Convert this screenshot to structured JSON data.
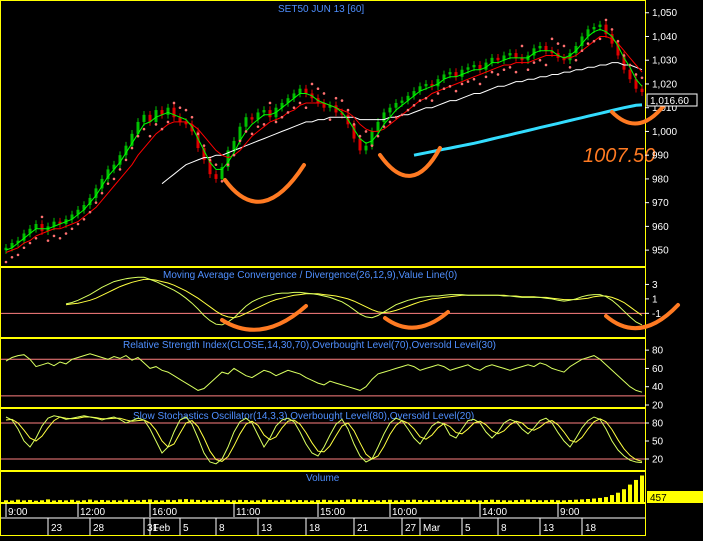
{
  "header": {
    "title": "SET50 JUN 13   [60]"
  },
  "annotation": {
    "price_note": "1007.50"
  },
  "colors": {
    "background": "#000000",
    "panel_border": "#ffff00",
    "ref_line": "#ff8080",
    "price_up": "#00c000",
    "price_down": "#e00000",
    "ma_fast": "#00ff00",
    "ma_mid": "#ff0000",
    "ma_slow": "#ffffff",
    "ma_long": "#33ddff",
    "sar": "#ff7070",
    "indicator": "#d8ff60",
    "signal": "#ffff40",
    "volume": "#ffff00",
    "annot": "#ff7a22",
    "label": "#4f8fff"
  },
  "chart_data": [
    {
      "type": "line",
      "name": "price",
      "title": "SET50 JUN 13   [60]",
      "ylim": [
        945,
        1052
      ],
      "yticks": [
        "1,050",
        "1,040",
        "1,030",
        "1,020",
        "1,010",
        "1,000",
        "990",
        "980",
        "970",
        "960",
        "950"
      ],
      "last_value_label": "1,016.60",
      "last_value": 1016.6,
      "annotation": "1007.50",
      "x": [
        0,
        6,
        12,
        18,
        24,
        30,
        36,
        42,
        48,
        54,
        60,
        66,
        72,
        78,
        84,
        90,
        96,
        102,
        108,
        114,
        120,
        126,
        132,
        138,
        144,
        150,
        156,
        162,
        168,
        174,
        180,
        186,
        192,
        198,
        204,
        210,
        216,
        222,
        228,
        234,
        240,
        246,
        252,
        258,
        264,
        270,
        276,
        282,
        288,
        294,
        300,
        306,
        312,
        318,
        324,
        330,
        336,
        342,
        348,
        354,
        360,
        366,
        372,
        378,
        384,
        390,
        396,
        402,
        408,
        414,
        420,
        426,
        432,
        438,
        444,
        450,
        456,
        462,
        468,
        474,
        480,
        486,
        492,
        498,
        504,
        510,
        516,
        522,
        528,
        534,
        540,
        546,
        552,
        558,
        564,
        570,
        576,
        582,
        588,
        594,
        600,
        606,
        612,
        618,
        624,
        630,
        636
      ],
      "close": [
        951,
        953,
        954,
        957,
        959,
        961,
        958,
        960,
        962,
        961,
        963,
        965,
        967,
        969,
        972,
        976,
        980,
        984,
        986,
        990,
        994,
        999,
        1004,
        1007,
        1004,
        1009,
        1007,
        1010,
        1006,
        1004,
        1003,
        1000,
        993,
        988,
        982,
        980,
        985,
        992,
        996,
        1002,
        1006,
        1005,
        1008,
        1009,
        1006,
        1010,
        1012,
        1014,
        1016,
        1018,
        1016,
        1014,
        1012,
        1010,
        1011,
        1008,
        1007,
        1003,
        997,
        992,
        994,
        1000,
        1004,
        1008,
        1010,
        1012,
        1013,
        1015,
        1017,
        1019,
        1020,
        1019,
        1022,
        1024,
        1025,
        1023,
        1026,
        1027,
        1028,
        1026,
        1029,
        1031,
        1030,
        1032,
        1033,
        1031,
        1030,
        1032,
        1035,
        1036,
        1034,
        1033,
        1031,
        1030,
        1033,
        1036,
        1040,
        1043,
        1044,
        1045,
        1041,
        1037,
        1032,
        1026,
        1022,
        1018,
        1016.6
      ],
      "ma_fast": [
        950,
        951,
        953,
        955,
        957,
        959,
        959,
        959,
        960,
        961,
        962,
        963,
        965,
        967,
        970,
        973,
        977,
        981,
        984,
        987,
        991,
        995,
        999,
        1003,
        1004,
        1006,
        1007,
        1008,
        1007,
        1006,
        1005,
        1002,
        997,
        992,
        987,
        984,
        984,
        987,
        991,
        996,
        1000,
        1003,
        1005,
        1007,
        1007,
        1008,
        1010,
        1012,
        1014,
        1016,
        1016,
        1015,
        1013,
        1012,
        1011,
        1010,
        1008,
        1005,
        1001,
        997,
        995,
        996,
        999,
        1003,
        1006,
        1009,
        1011,
        1013,
        1015,
        1017,
        1018,
        1019,
        1020,
        1022,
        1023,
        1023,
        1024,
        1025,
        1026,
        1026,
        1027,
        1029,
        1029,
        1030,
        1031,
        1031,
        1031,
        1031,
        1033,
        1034,
        1034,
        1034,
        1032,
        1031,
        1032,
        1034,
        1037,
        1040,
        1042,
        1043,
        1042,
        1040,
        1036,
        1031,
        1027,
        1022,
        1019
      ],
      "ma_mid": [
        949,
        950,
        951,
        953,
        954,
        956,
        957,
        958,
        959,
        959,
        960,
        961,
        962,
        964,
        966,
        968,
        971,
        974,
        977,
        980,
        983,
        986,
        990,
        993,
        996,
        999,
        1001,
        1003,
        1004,
        1004,
        1004,
        1003,
        1001,
        998,
        995,
        992,
        990,
        989,
        990,
        992,
        995,
        998,
        1000,
        1002,
        1004,
        1005,
        1006,
        1008,
        1009,
        1011,
        1012,
        1012,
        1012,
        1012,
        1011,
        1010,
        1009,
        1008,
        1006,
        1003,
        1001,
        1000,
        1000,
        1001,
        1003,
        1005,
        1007,
        1009,
        1011,
        1013,
        1014,
        1016,
        1017,
        1018,
        1019,
        1020,
        1021,
        1022,
        1023,
        1024,
        1025,
        1026,
        1027,
        1028,
        1028,
        1029,
        1029,
        1029,
        1030,
        1031,
        1032,
        1032,
        1032,
        1031,
        1031,
        1032,
        1034,
        1036,
        1038,
        1040,
        1040,
        1039,
        1037,
        1034,
        1031,
        1028,
        1025
      ],
      "ma_slow": [
        null,
        null,
        null,
        null,
        null,
        null,
        null,
        null,
        null,
        null,
        null,
        null,
        null,
        null,
        null,
        null,
        null,
        null,
        null,
        null,
        null,
        null,
        null,
        null,
        null,
        null,
        978,
        980,
        982,
        984,
        986,
        987,
        988,
        989,
        989,
        990,
        990,
        991,
        992,
        993,
        994,
        995,
        996,
        997,
        998,
        999,
        1000,
        1001,
        1002,
        1003,
        1004,
        1004,
        1005,
        1005,
        1006,
        1006,
        1006,
        1006,
        1006,
        1005,
        1005,
        1005,
        1005,
        1005,
        1006,
        1006,
        1007,
        1007,
        1008,
        1009,
        1010,
        1010,
        1011,
        1012,
        1013,
        1013,
        1014,
        1015,
        1016,
        1016,
        1017,
        1018,
        1019,
        1019,
        1020,
        1021,
        1021,
        1022,
        1022,
        1023,
        1023,
        1024,
        1024,
        1025,
        1025,
        1026,
        1026,
        1027,
        1027,
        1028,
        1028,
        1029,
        1029,
        1028,
        1028,
        1027,
        1026
      ],
      "ma_long": [
        null,
        null,
        null,
        null,
        null,
        null,
        null,
        null,
        null,
        null,
        null,
        null,
        null,
        null,
        null,
        null,
        null,
        null,
        null,
        null,
        null,
        null,
        null,
        null,
        null,
        null,
        null,
        null,
        null,
        null,
        null,
        null,
        null,
        null,
        null,
        null,
        null,
        null,
        null,
        null,
        null,
        null,
        null,
        null,
        null,
        null,
        null,
        null,
        null,
        null,
        null,
        null,
        null,
        null,
        null,
        null,
        null,
        null,
        null,
        null,
        null,
        null,
        null,
        null,
        null,
        null,
        null,
        null,
        990,
        990.5,
        991,
        991.5,
        992,
        992.5,
        993,
        993.5,
        994,
        994.5,
        995,
        995.6,
        996.2,
        996.8,
        997.4,
        998,
        998.6,
        999.2,
        999.8,
        1000.4,
        1001,
        1001.6,
        1002.2,
        1002.8,
        1003.4,
        1004,
        1004.6,
        1005.2,
        1005.8,
        1006.4,
        1007,
        1007.6,
        1008.2,
        1008.8,
        1009.4,
        1010,
        1010.5,
        1011,
        1011.2
      ]
    },
    {
      "type": "line",
      "name": "macd",
      "title": "Moving Average Convergence / Divergence(26,12,9),Value Line(0)",
      "ylim": [
        -4,
        5
      ],
      "yticks": [
        "3",
        "1",
        "-1"
      ],
      "ref_lines": [
        -1
      ],
      "macd": [
        null,
        null,
        null,
        null,
        null,
        null,
        null,
        null,
        null,
        null,
        0.3,
        0.5,
        0.8,
        1.2,
        1.6,
        2.1,
        2.6,
        3.0,
        3.4,
        3.6,
        3.8,
        3.9,
        4.0,
        4.0,
        3.7,
        3.4,
        3.0,
        2.6,
        2.2,
        1.7,
        1.1,
        0.4,
        -0.4,
        -1.3,
        -2.0,
        -2.5,
        -2.6,
        -2.2,
        -1.6,
        -0.8,
        0.0,
        0.6,
        1.0,
        1.3,
        1.5,
        1.7,
        1.8,
        1.8,
        1.9,
        1.9,
        1.8,
        1.7,
        1.6,
        1.4,
        1.2,
        0.9,
        0.6,
        0.1,
        -0.5,
        -1.1,
        -1.5,
        -1.6,
        -1.3,
        -0.8,
        -0.3,
        0.2,
        0.5,
        0.8,
        1.0,
        1.2,
        1.3,
        1.4,
        1.4,
        1.5,
        1.6,
        1.6,
        1.6,
        1.5,
        1.5,
        1.5,
        1.5,
        1.5,
        1.5,
        1.4,
        1.4,
        1.3,
        1.2,
        1.2,
        1.2,
        1.2,
        1.1,
        1.0,
        0.8,
        0.7,
        0.8,
        1.0,
        1.3,
        1.5,
        1.6,
        1.6,
        1.3,
        0.8,
        0.1,
        -0.7,
        -1.5,
        -2.2,
        -2.6
      ],
      "signal": [
        null,
        null,
        null,
        null,
        null,
        null,
        null,
        null,
        null,
        null,
        0.2,
        0.3,
        0.4,
        0.6,
        0.8,
        1.1,
        1.5,
        1.9,
        2.3,
        2.7,
        3.0,
        3.3,
        3.5,
        3.7,
        3.7,
        3.6,
        3.4,
        3.2,
        2.9,
        2.5,
        2.1,
        1.6,
        1.1,
        0.5,
        -0.1,
        -0.7,
        -1.2,
        -1.5,
        -1.6,
        -1.4,
        -1.0,
        -0.6,
        -0.2,
        0.2,
        0.6,
        0.9,
        1.1,
        1.3,
        1.5,
        1.6,
        1.7,
        1.7,
        1.7,
        1.6,
        1.5,
        1.4,
        1.2,
        1.0,
        0.7,
        0.3,
        -0.1,
        -0.5,
        -0.8,
        -0.9,
        -0.8,
        -0.6,
        -0.3,
        0.0,
        0.3,
        0.6,
        0.8,
        1.0,
        1.1,
        1.2,
        1.3,
        1.4,
        1.5,
        1.5,
        1.5,
        1.5,
        1.5,
        1.5,
        1.5,
        1.5,
        1.4,
        1.4,
        1.3,
        1.3,
        1.3,
        1.2,
        1.2,
        1.1,
        1.0,
        0.9,
        0.9,
        0.9,
        1.0,
        1.1,
        1.3,
        1.4,
        1.4,
        1.2,
        0.9,
        0.5,
        -0.1,
        -0.7,
        -1.3
      ]
    },
    {
      "type": "line",
      "name": "rsi",
      "title": "Relative Strength Index(CLOSE,14,30,70),Overbought Level(70),Oversold Level(30)",
      "ylim": [
        20,
        90
      ],
      "yticks": [
        "80",
        "60",
        "40",
        "20"
      ],
      "ref_lines": [
        70,
        30
      ],
      "values": [
        68,
        72,
        74,
        75,
        70,
        62,
        64,
        66,
        63,
        67,
        65,
        70,
        72,
        74,
        76,
        74,
        72,
        70,
        73,
        71,
        74,
        69,
        72,
        66,
        60,
        62,
        58,
        56,
        52,
        48,
        44,
        40,
        36,
        38,
        44,
        50,
        56,
        54,
        60,
        56,
        52,
        50,
        54,
        58,
        56,
        52,
        55,
        58,
        56,
        54,
        50,
        47,
        44,
        42,
        46,
        44,
        42,
        40,
        38,
        36,
        40,
        48,
        54,
        56,
        58,
        60,
        62,
        64,
        62,
        58,
        60,
        62,
        64,
        62,
        58,
        60,
        62,
        64,
        60,
        58,
        62,
        64,
        62,
        60,
        58,
        60,
        62,
        64,
        62,
        66,
        64,
        60,
        58,
        56,
        62,
        66,
        70,
        72,
        74,
        70,
        64,
        58,
        52,
        46,
        40,
        36,
        34
      ]
    },
    {
      "type": "line",
      "name": "stochastic",
      "title": "Slow Stochastics Oscillator(14,3,3),Overbought Level(80),Oversold Level(20)",
      "ylim": [
        5,
        100
      ],
      "yticks": [
        "80",
        "50",
        "20"
      ],
      "ref_lines": [
        80,
        20
      ],
      "k": [
        90,
        85,
        70,
        50,
        40,
        55,
        75,
        88,
        92,
        90,
        86,
        88,
        90,
        92,
        90,
        88,
        85,
        88,
        90,
        86,
        80,
        84,
        88,
        85,
        70,
        50,
        30,
        40,
        65,
        85,
        90,
        78,
        55,
        30,
        15,
        12,
        20,
        40,
        65,
        82,
        88,
        80,
        60,
        40,
        55,
        75,
        85,
        88,
        82,
        65,
        45,
        30,
        25,
        40,
        60,
        78,
        86,
        70,
        45,
        25,
        15,
        20,
        40,
        62,
        80,
        88,
        84,
        70,
        55,
        45,
        60,
        75,
        82,
        78,
        60,
        55,
        70,
        84,
        86,
        80,
        65,
        55,
        65,
        80,
        86,
        82,
        70,
        62,
        72,
        84,
        88,
        80,
        64,
        50,
        40,
        55,
        72,
        84,
        90,
        86,
        70,
        50,
        35,
        25,
        18,
        15,
        14
      ],
      "d": [
        85,
        86,
        80,
        68,
        55,
        50,
        58,
        72,
        84,
        90,
        88,
        87,
        88,
        90,
        90,
        89,
        87,
        87,
        88,
        88,
        85,
        83,
        84,
        85,
        80,
        68,
        50,
        40,
        45,
        63,
        80,
        84,
        74,
        55,
        33,
        19,
        16,
        24,
        42,
        62,
        78,
        83,
        76,
        60,
        52,
        57,
        72,
        83,
        85,
        78,
        64,
        47,
        33,
        32,
        42,
        59,
        75,
        80,
        67,
        47,
        28,
        20,
        25,
        41,
        61,
        76,
        84,
        80,
        70,
        57,
        53,
        60,
        72,
        79,
        74,
        64,
        62,
        70,
        80,
        83,
        77,
        67,
        62,
        67,
        77,
        83,
        80,
        71,
        68,
        73,
        81,
        84,
        77,
        65,
        51,
        48,
        56,
        70,
        82,
        87,
        82,
        69,
        52,
        37,
        26,
        19,
        16
      ]
    },
    {
      "type": "bar",
      "name": "volume",
      "title": "Volume",
      "last_value_label": "457",
      "values": [
        30,
        25,
        40,
        28,
        35,
        22,
        30,
        45,
        26,
        33,
        28,
        38,
        24,
        30,
        42,
        27,
        35,
        29,
        31,
        26,
        40,
        33,
        28,
        36,
        44,
        30,
        27,
        38,
        32,
        45,
        50,
        42,
        36,
        30,
        28,
        34,
        40,
        31,
        29,
        37,
        33,
        28,
        30,
        41,
        35,
        27,
        32,
        38,
        29,
        34,
        30,
        26,
        33,
        39,
        31,
        28,
        36,
        42,
        48,
        40,
        35,
        30,
        27,
        33,
        38,
        29,
        31,
        36,
        40,
        34,
        28,
        32,
        37,
        30,
        35,
        29,
        33,
        38,
        31,
        27,
        34,
        40,
        36,
        30,
        28,
        33,
        38,
        42,
        35,
        30,
        32,
        37,
        31,
        29,
        35,
        40,
        45,
        52,
        60,
        70,
        85,
        120,
        160,
        220,
        300,
        380,
        457
      ],
      "ylim": [
        0,
        500
      ]
    }
  ],
  "time_axis": {
    "times": [
      "9:00",
      "12:00",
      "16:00",
      "11:00",
      "15:00",
      "10:00",
      "14:00",
      "9:00"
    ],
    "dates": [
      "23",
      "28",
      "31",
      "Feb",
      "5",
      "8",
      "13",
      "18",
      "21",
      "27",
      "Mar",
      "5",
      "8",
      "13",
      "18"
    ]
  }
}
